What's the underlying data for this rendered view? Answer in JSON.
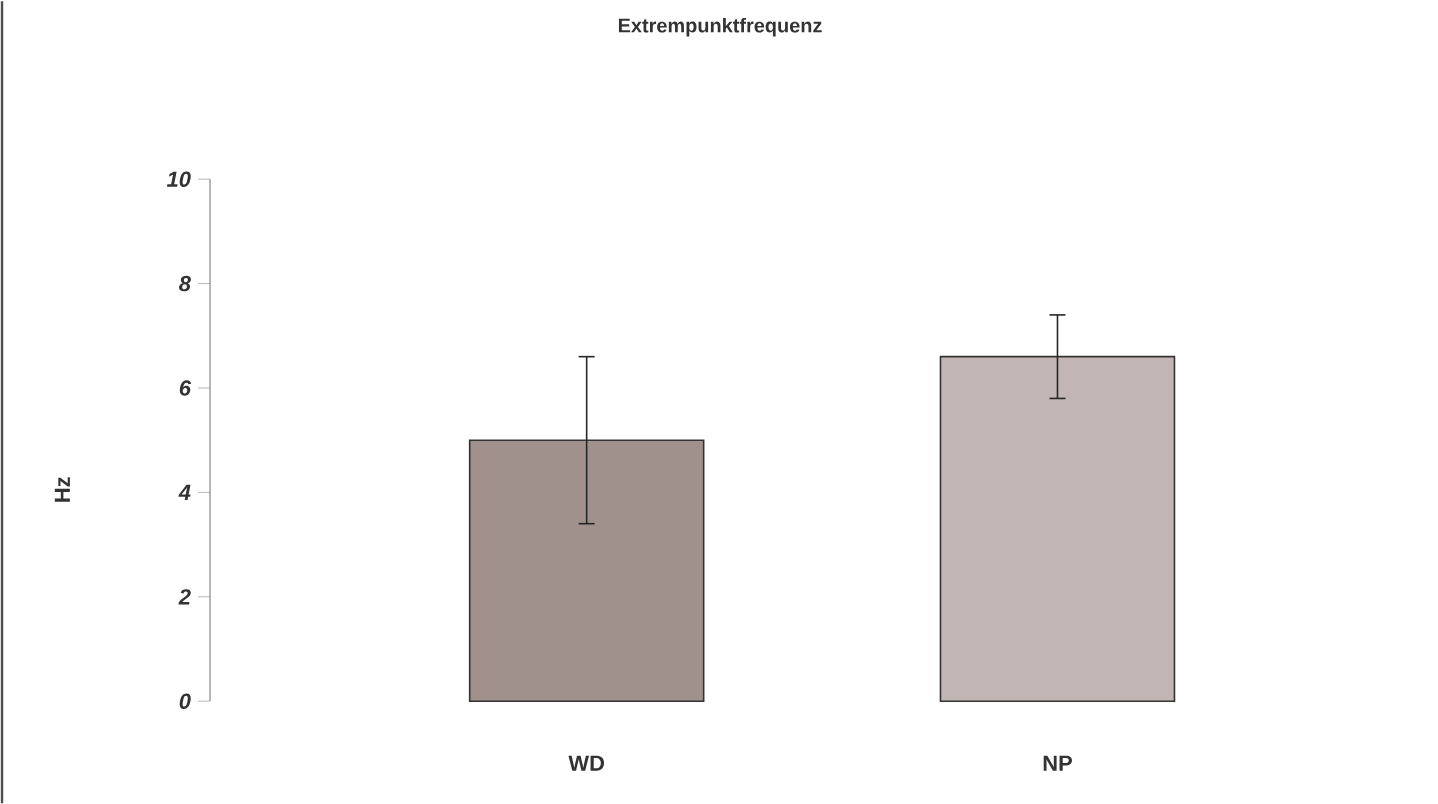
{
  "chart_data": {
    "type": "bar",
    "title": "Extrempunktfrequenz",
    "ylabel": "Hz",
    "categories": [
      "WD",
      "NP"
    ],
    "values": [
      5.0,
      6.6
    ],
    "errors": [
      1.6,
      0.8
    ],
    "colors": [
      "#a0918d",
      "#c1b6b3"
    ],
    "ylim": [
      0,
      10
    ],
    "yticks": [
      0,
      2,
      4,
      6,
      8,
      10
    ]
  }
}
